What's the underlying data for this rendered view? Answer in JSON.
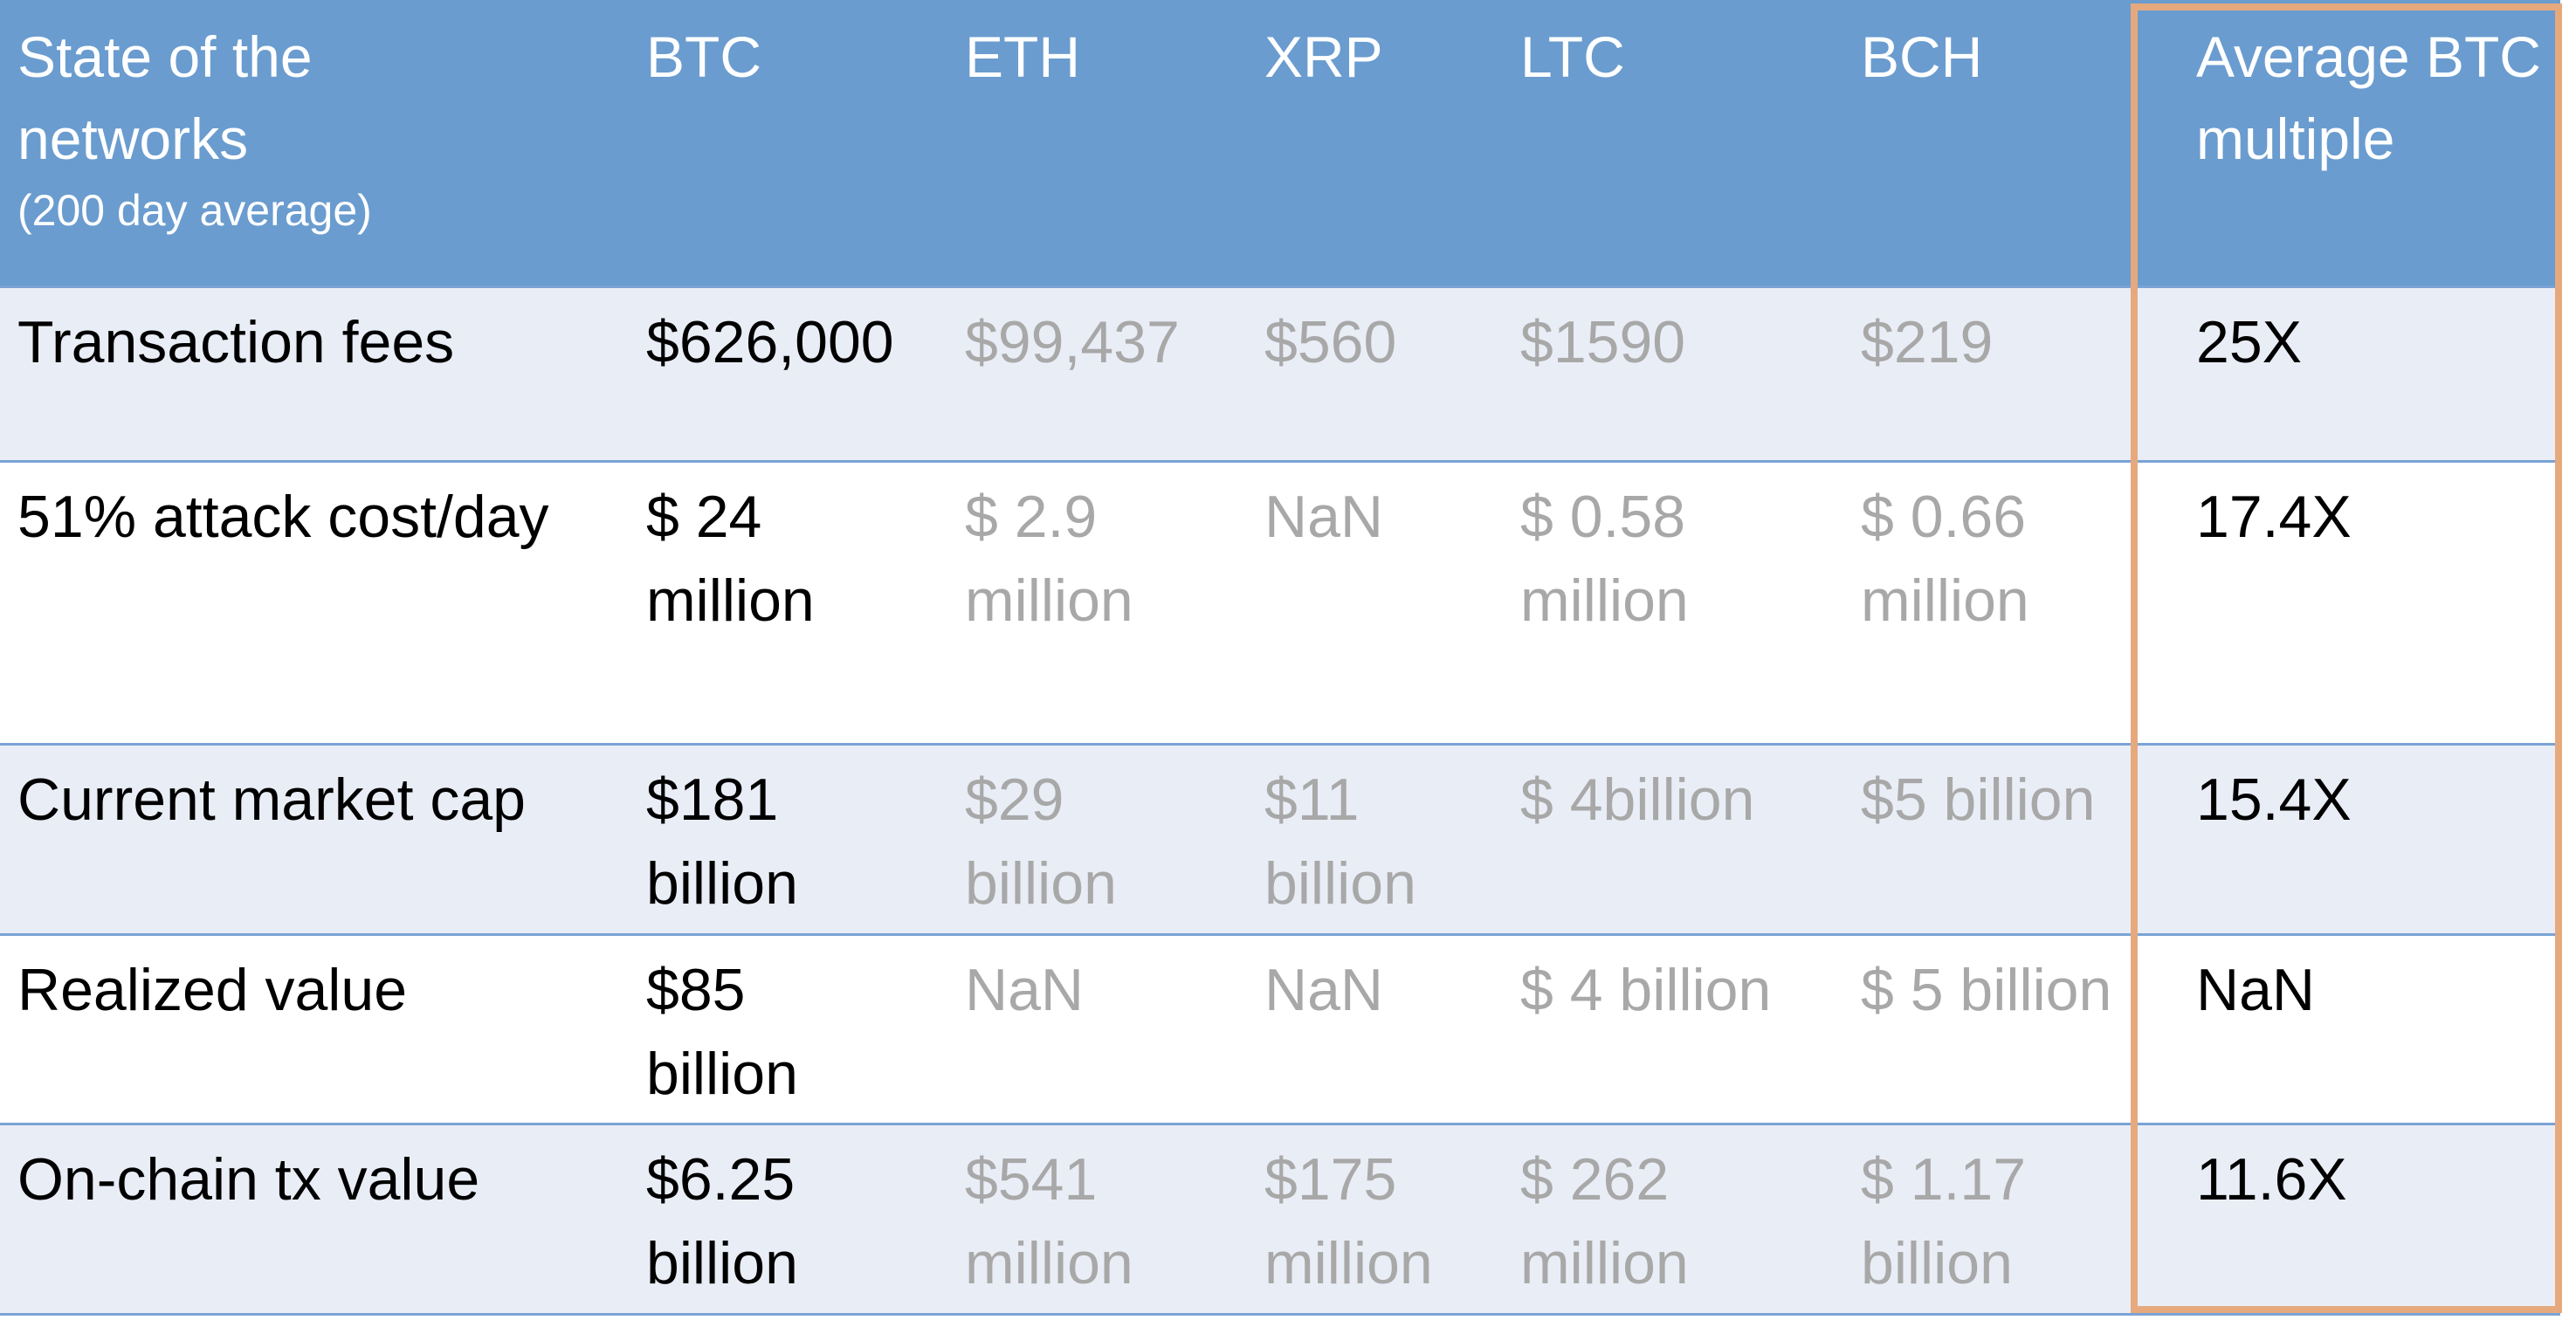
{
  "table": {
    "header": {
      "metric_title_lines": [
        "State of the",
        "networks"
      ],
      "metric_subtitle": "(200 day average)",
      "columns": [
        "BTC",
        "ETH",
        "XRP",
        "LTC",
        "BCH"
      ],
      "multiple_title_lines": [
        "Average BTC",
        "multiple"
      ]
    },
    "rows": [
      {
        "metric": "Transaction fees",
        "btc": [
          "$626,000"
        ],
        "eth": [
          "$99,437"
        ],
        "xrp": [
          "$560"
        ],
        "ltc": [
          "$1590"
        ],
        "bch": [
          "$219"
        ],
        "multiple": "25X"
      },
      {
        "metric": "51% attack cost/day",
        "btc": [
          "$ 24",
          "million"
        ],
        "eth": [
          "$ 2.9",
          "million"
        ],
        "xrp": [
          "NaN"
        ],
        "ltc": [
          "$ 0.58",
          "million"
        ],
        "bch": [
          "$ 0.66",
          "million"
        ],
        "multiple": "17.4X"
      },
      {
        "metric": "Current market cap",
        "btc": [
          "$181",
          "billion"
        ],
        "eth": [
          "$29",
          "billion"
        ],
        "xrp": [
          "$11",
          "billion"
        ],
        "ltc": [
          "$ 4billion"
        ],
        "bch": [
          "$5 billion"
        ],
        "multiple": "15.4X"
      },
      {
        "metric": "Realized value",
        "btc": [
          "$85",
          "billion"
        ],
        "eth": [
          "NaN"
        ],
        "xrp": [
          "NaN"
        ],
        "ltc": [
          "$ 4 billion"
        ],
        "bch": [
          "$ 5 billion"
        ],
        "multiple": "NaN"
      },
      {
        "metric": "On-chain tx value",
        "btc": [
          "$6.25",
          "billion"
        ],
        "eth": [
          "$541",
          "million"
        ],
        "xrp": [
          "$175",
          "million"
        ],
        "ltc": [
          "$ 262",
          "million"
        ],
        "bch": [
          "$ 1.17",
          "billion"
        ],
        "multiple": "11.6X"
      }
    ]
  },
  "colors": {
    "header_background": "#6a9ccf",
    "header_text": "#ffffff",
    "row_band_odd": "#e9edf6",
    "row_band_even": "#ffffff",
    "row_divider": "#7aa3d6",
    "btc_text": "#000000",
    "altcoin_text": "#a8a8a8",
    "highlight_border": "#e6a97e"
  }
}
